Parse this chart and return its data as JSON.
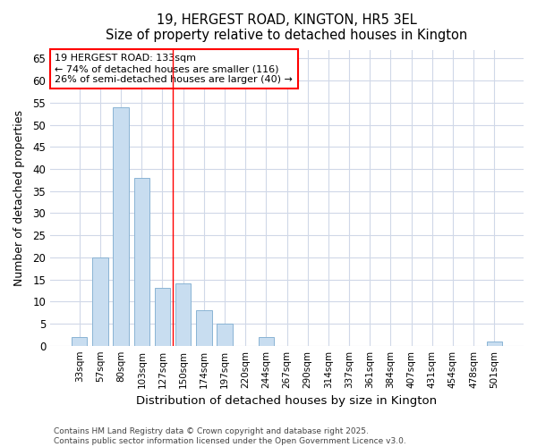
{
  "title1": "19, HERGEST ROAD, KINGTON, HR5 3EL",
  "title2": "Size of property relative to detached houses in Kington",
  "xlabel": "Distribution of detached houses by size in Kington",
  "ylabel": "Number of detached properties",
  "categories": [
    "33sqm",
    "57sqm",
    "80sqm",
    "103sqm",
    "127sqm",
    "150sqm",
    "174sqm",
    "197sqm",
    "220sqm",
    "244sqm",
    "267sqm",
    "290sqm",
    "314sqm",
    "337sqm",
    "361sqm",
    "384sqm",
    "407sqm",
    "431sqm",
    "454sqm",
    "478sqm",
    "501sqm"
  ],
  "values": [
    2,
    20,
    54,
    38,
    13,
    14,
    8,
    5,
    0,
    2,
    0,
    0,
    0,
    0,
    0,
    0,
    0,
    0,
    0,
    0,
    1
  ],
  "bar_color": "#c8ddf0",
  "bar_edge_color": "#8ab4d4",
  "ylim": [
    0,
    67
  ],
  "yticks": [
    0,
    5,
    10,
    15,
    20,
    25,
    30,
    35,
    40,
    45,
    50,
    55,
    60,
    65
  ],
  "red_line_x": 4.5,
  "annotation_title": "19 HERGEST ROAD: 133sqm",
  "annotation_line1": "← 74% of detached houses are smaller (116)",
  "annotation_line2": "26% of semi-detached houses are larger (40) →",
  "footer": "Contains HM Land Registry data © Crown copyright and database right 2025.\nContains public sector information licensed under the Open Government Licence v3.0.",
  "bg_color": "#ffffff",
  "plot_bg_color": "#ffffff",
  "grid_color": "#d0d8e8"
}
